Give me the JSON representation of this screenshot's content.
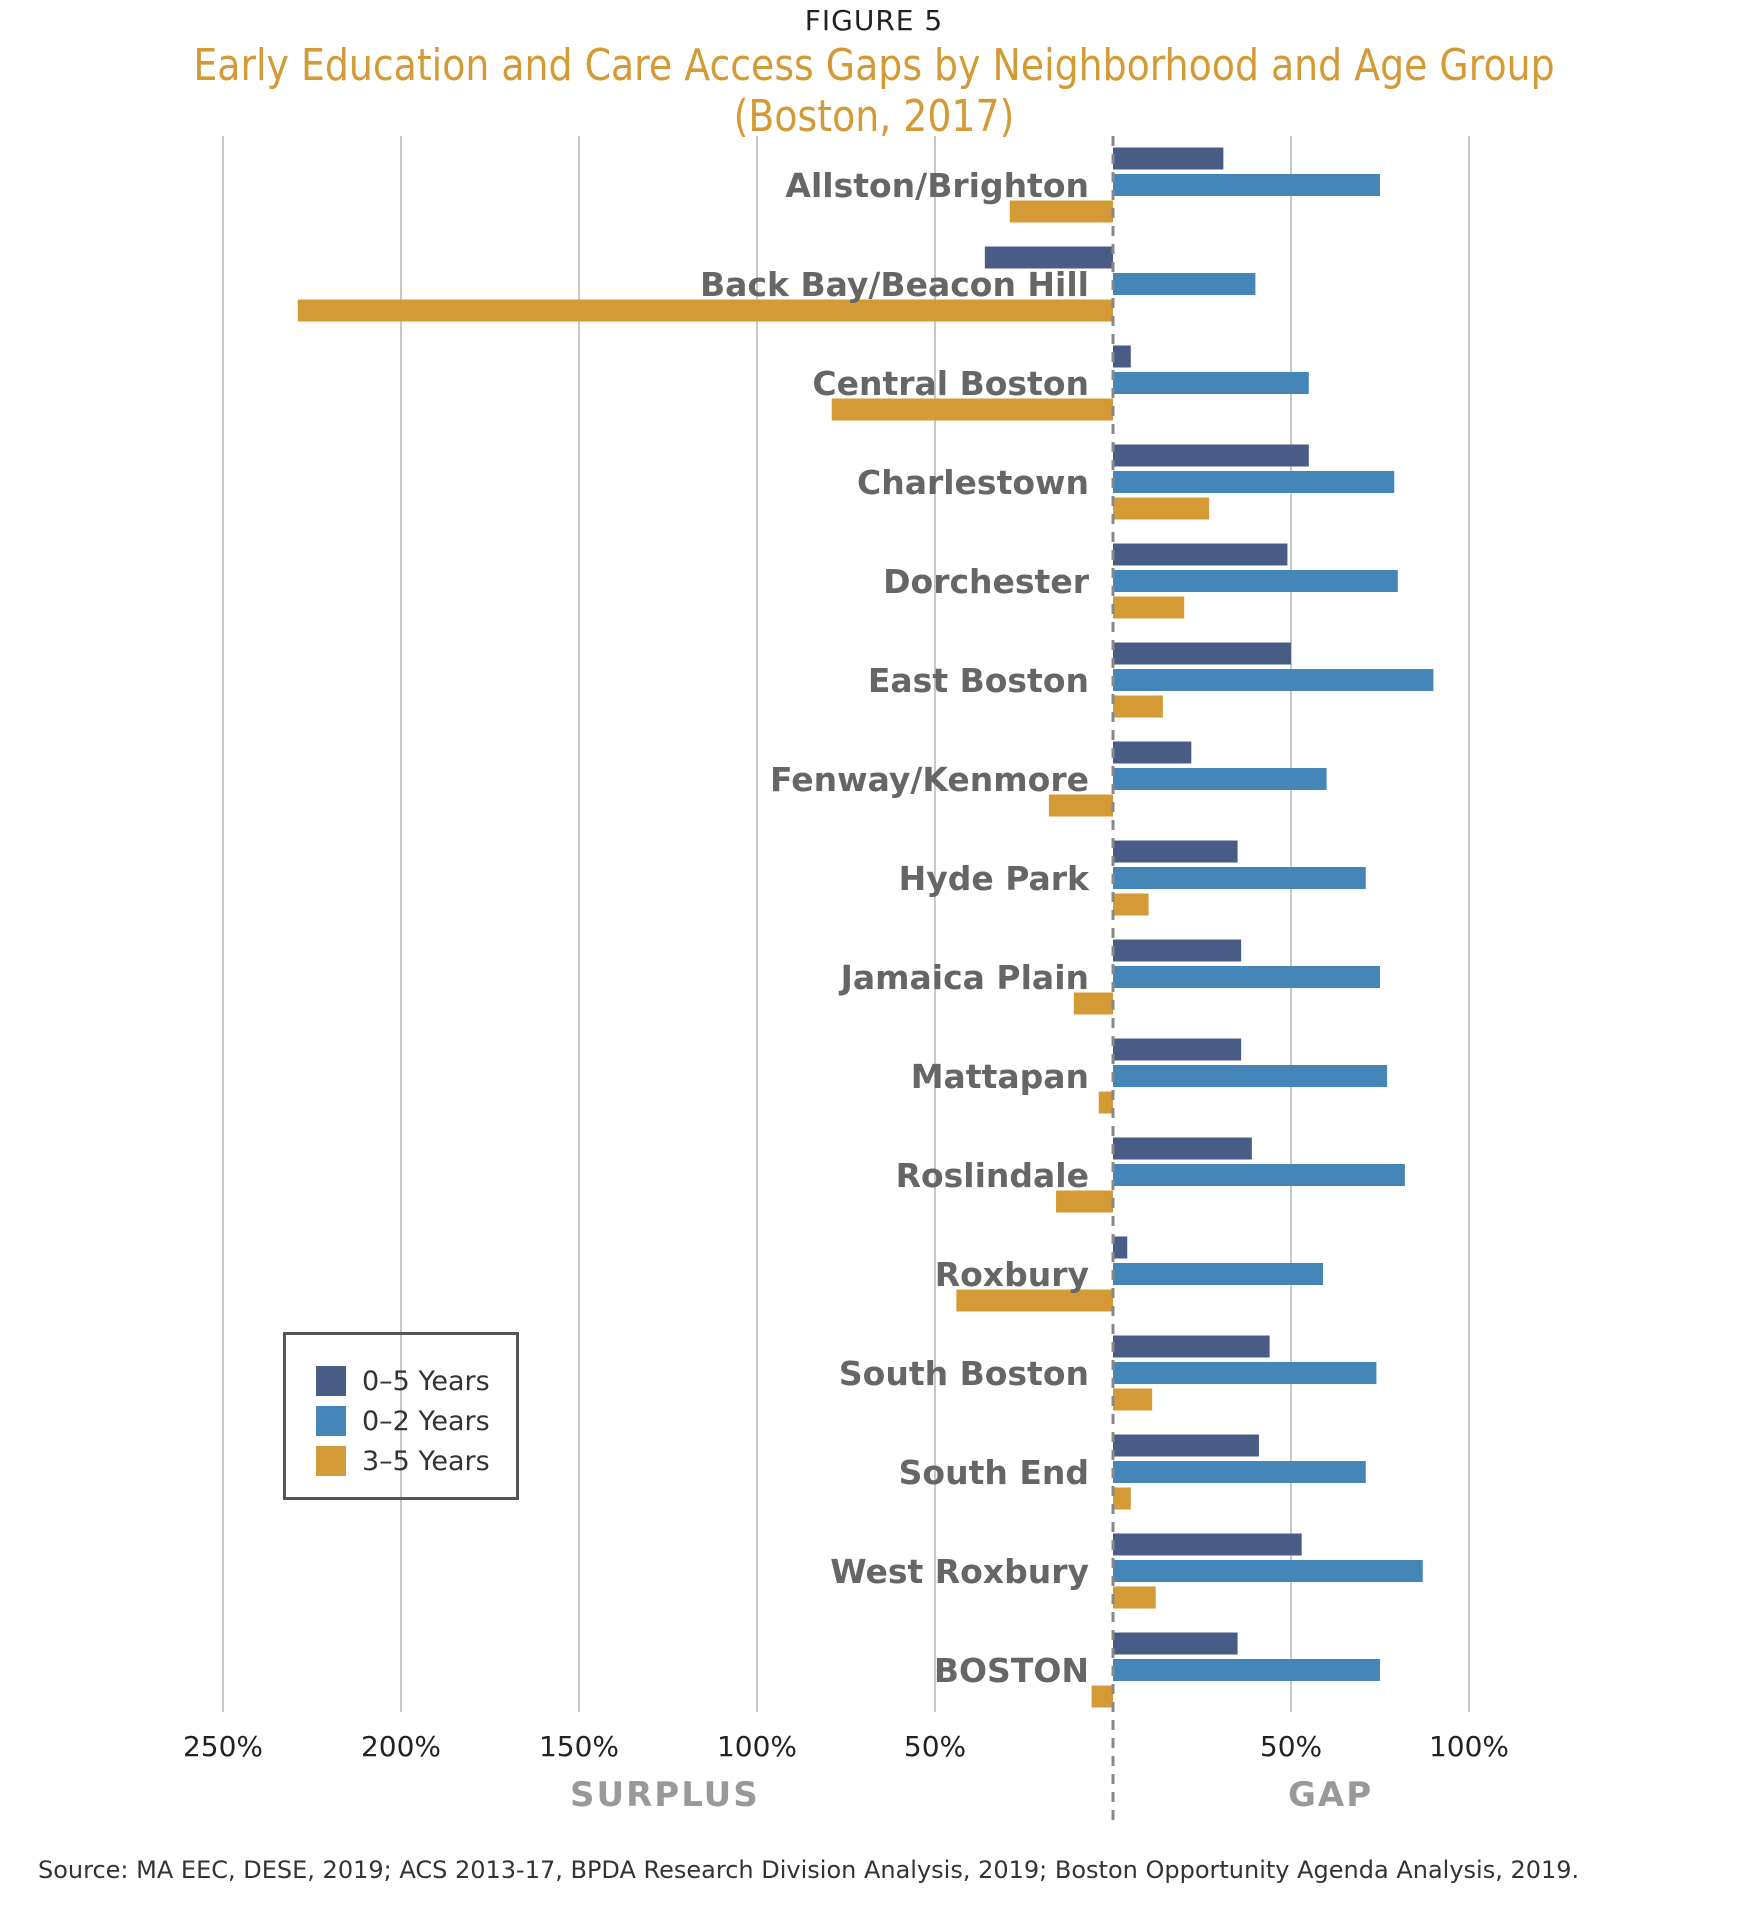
{
  "figure_label": "FIGURE 5",
  "chart_data": {
    "type": "bar",
    "orientation": "horizontal",
    "title": "Early Education and Care Access Gaps by Neighborhood and Age Group (Boston, 2017)",
    "categories": [
      "Allston/Brighton",
      "Back Bay/Beacon Hill",
      "Central Boston",
      "Charlestown",
      "Dorchester",
      "East Boston",
      "Fenway/Kenmore",
      "Hyde Park",
      "Jamaica Plain",
      "Mattapan",
      "Roslindale",
      "Roxbury",
      "South Boston",
      "South End",
      "West Roxbury",
      "BOSTON"
    ],
    "series": [
      {
        "name": "0–5 Years",
        "color": "#485c85",
        "values": [
          31,
          -36,
          5,
          55,
          49,
          50,
          22,
          35,
          36,
          36,
          39,
          4,
          44,
          41,
          53,
          35
        ]
      },
      {
        "name": "0–2 Years",
        "color": "#4486b8",
        "values": [
          75,
          40,
          55,
          79,
          80,
          90,
          60,
          71,
          75,
          77,
          82,
          59,
          74,
          71,
          87,
          75
        ]
      },
      {
        "name": "3–5 Years",
        "color": "#d49a35",
        "values": [
          -29,
          -229,
          -79,
          27,
          20,
          14,
          -18,
          10,
          -11,
          -4,
          -16,
          -44,
          11,
          5,
          12,
          -6
        ]
      }
    ],
    "xlim": [
      -250,
      100
    ],
    "ticks": [
      {
        "value": -250,
        "label": "250%"
      },
      {
        "value": -200,
        "label": "200%"
      },
      {
        "value": -150,
        "label": "150%"
      },
      {
        "value": -100,
        "label": "100%"
      },
      {
        "value": -50,
        "label": "50%"
      },
      {
        "value": 50,
        "label": "50%"
      },
      {
        "value": 100,
        "label": "100%"
      }
    ],
    "side_labels": {
      "negative": "SURPLUS",
      "positive": "GAP"
    },
    "grid": true,
    "legend_placement": "bottom-left"
  },
  "source": "Source: MA EEC, DESE, 2019; ACS 2013-17, BPDA Research Division Analysis, 2019; Boston Opportunity Agenda Analysis, 2019."
}
